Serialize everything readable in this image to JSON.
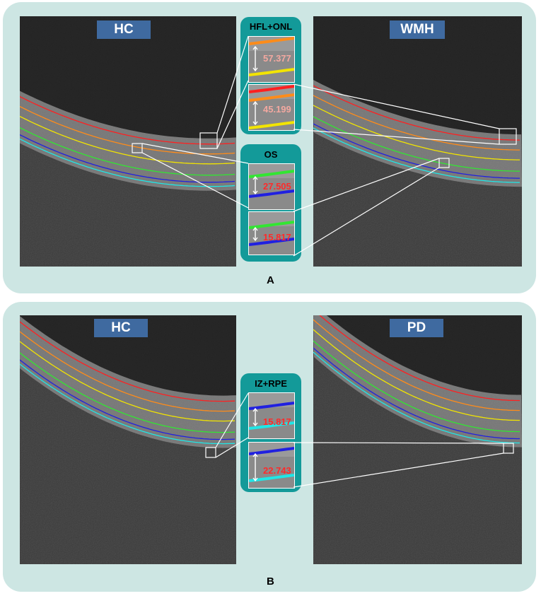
{
  "panel_a": {
    "label": "A",
    "left_image": {
      "tag": "HC"
    },
    "right_image": {
      "tag": "WMH"
    },
    "inset_upper": {
      "title": "HFL+ONL",
      "measurements": [
        "57.377",
        "45.199"
      ],
      "measurement_color": "#f3a8a0"
    },
    "inset_lower": {
      "title": "OS",
      "measurements": [
        "27.505",
        "15.817"
      ],
      "measurement_color": "#ff2a2a"
    }
  },
  "panel_b": {
    "label": "B",
    "left_image": {
      "tag": "HC"
    },
    "right_image": {
      "tag": "PD"
    },
    "inset": {
      "title": "IZ+RPE",
      "measurements": [
        "15.817",
        "22.743"
      ],
      "measurement_color": "#ff2a2a"
    }
  },
  "colors": {
    "panel_background": "#cde6e3",
    "inset_background": "#139a99",
    "tag_background": "#3f6aa0",
    "layer_colors": [
      "#ff2020",
      "#ff8c1a",
      "#f2e400",
      "#32e632",
      "#2020e0",
      "#20e6e6"
    ]
  }
}
